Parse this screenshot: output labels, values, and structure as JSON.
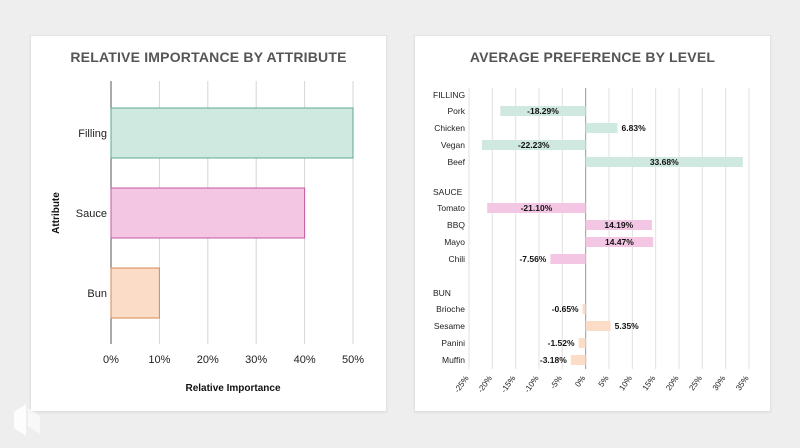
{
  "chart_data": [
    {
      "type": "bar",
      "orientation": "horizontal",
      "title": "RELATIVE IMPORTANCE BY ATTRIBUTE",
      "xlabel": "Relative Importance",
      "ylabel": "Attribute",
      "categories": [
        "Filling",
        "Sauce",
        "Bun"
      ],
      "values": [
        50,
        40,
        10
      ],
      "colors": [
        "#cfe8e0",
        "#f3c6e3",
        "#fbdcc6"
      ],
      "stroke_colors": [
        "#5fa890",
        "#c25aa0",
        "#d88a5a"
      ],
      "xlim": [
        0,
        50
      ],
      "xticks": [
        0,
        10,
        20,
        30,
        40,
        50
      ],
      "xtick_labels": [
        "0%",
        "10%",
        "20%",
        "30%",
        "40%",
        "50%"
      ],
      "grid": true
    },
    {
      "type": "bar",
      "orientation": "horizontal",
      "title": "AVERAGE PREFERENCE BY LEVEL",
      "xlim": [
        -25,
        35
      ],
      "xticks": [
        -25,
        -20,
        -15,
        -10,
        -5,
        0,
        5,
        10,
        15,
        20,
        25,
        30,
        35
      ],
      "xtick_labels": [
        "-25%",
        "-20%",
        "-15%",
        "-10%",
        "-5%",
        "0%",
        "5%",
        "10%",
        "15%",
        "20%",
        "25%",
        "30%",
        "35%"
      ],
      "grid": true,
      "groups": [
        {
          "name": "FILLING",
          "color": "#cfe8e0",
          "levels": [
            {
              "label": "Pork",
              "value": -18.29,
              "text": "-18.29%"
            },
            {
              "label": "Chicken",
              "value": 6.83,
              "text": "6.83%"
            },
            {
              "label": "Vegan",
              "value": -22.23,
              "text": "-22.23%"
            },
            {
              "label": "Beef",
              "value": 33.68,
              "text": "33.68%"
            }
          ]
        },
        {
          "name": "SAUCE",
          "color": "#f3c6e3",
          "levels": [
            {
              "label": "Tomato",
              "value": -21.1,
              "text": "-21.10%"
            },
            {
              "label": "BBQ",
              "value": 14.19,
              "text": "14.19%"
            },
            {
              "label": "Mayo",
              "value": 14.47,
              "text": "14.47%"
            },
            {
              "label": "Chili",
              "value": -7.56,
              "text": "-7.56%"
            }
          ]
        },
        {
          "name": "BUN",
          "color": "#fbdcc6",
          "levels": [
            {
              "label": "Brioche",
              "value": -0.65,
              "text": "-0.65%"
            },
            {
              "label": "Sesame",
              "value": 5.35,
              "text": "5.35%"
            },
            {
              "label": "Panini",
              "value": -1.52,
              "text": "-1.52%"
            },
            {
              "label": "Muffin",
              "value": -3.18,
              "text": "-3.18%"
            }
          ]
        }
      ]
    }
  ],
  "logo": {
    "icon": "brand-logo-icon",
    "color": "#ffffff"
  }
}
